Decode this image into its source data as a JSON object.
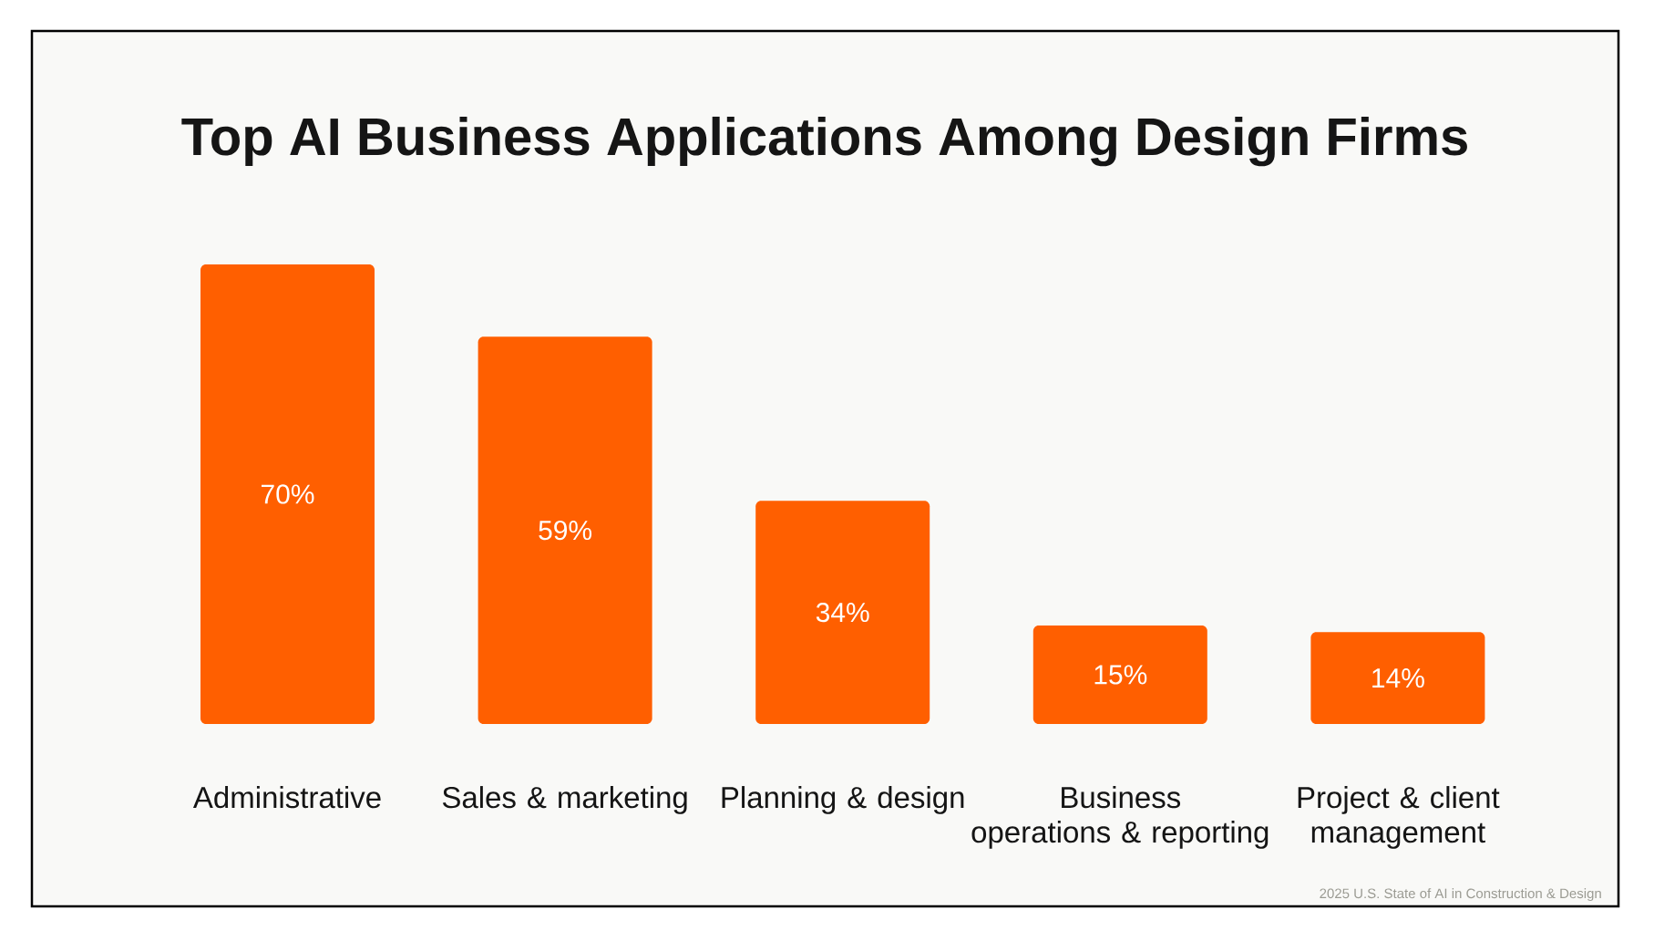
{
  "chart_data": {
    "type": "bar",
    "title": "Top AI Business Applications Among Design Firms",
    "categories": [
      "Administrative",
      "Sales & marketing",
      "Planning & design",
      "Business operations & reporting",
      "Project & client management"
    ],
    "values": [
      70,
      59,
      34,
      15,
      14
    ],
    "value_labels": [
      "70%",
      "59%",
      "34%",
      "15%",
      "14%"
    ],
    "color": "#ff5f00",
    "annotations": [
      "2025 U.S. State of AI in Construction & Design"
    ]
  }
}
